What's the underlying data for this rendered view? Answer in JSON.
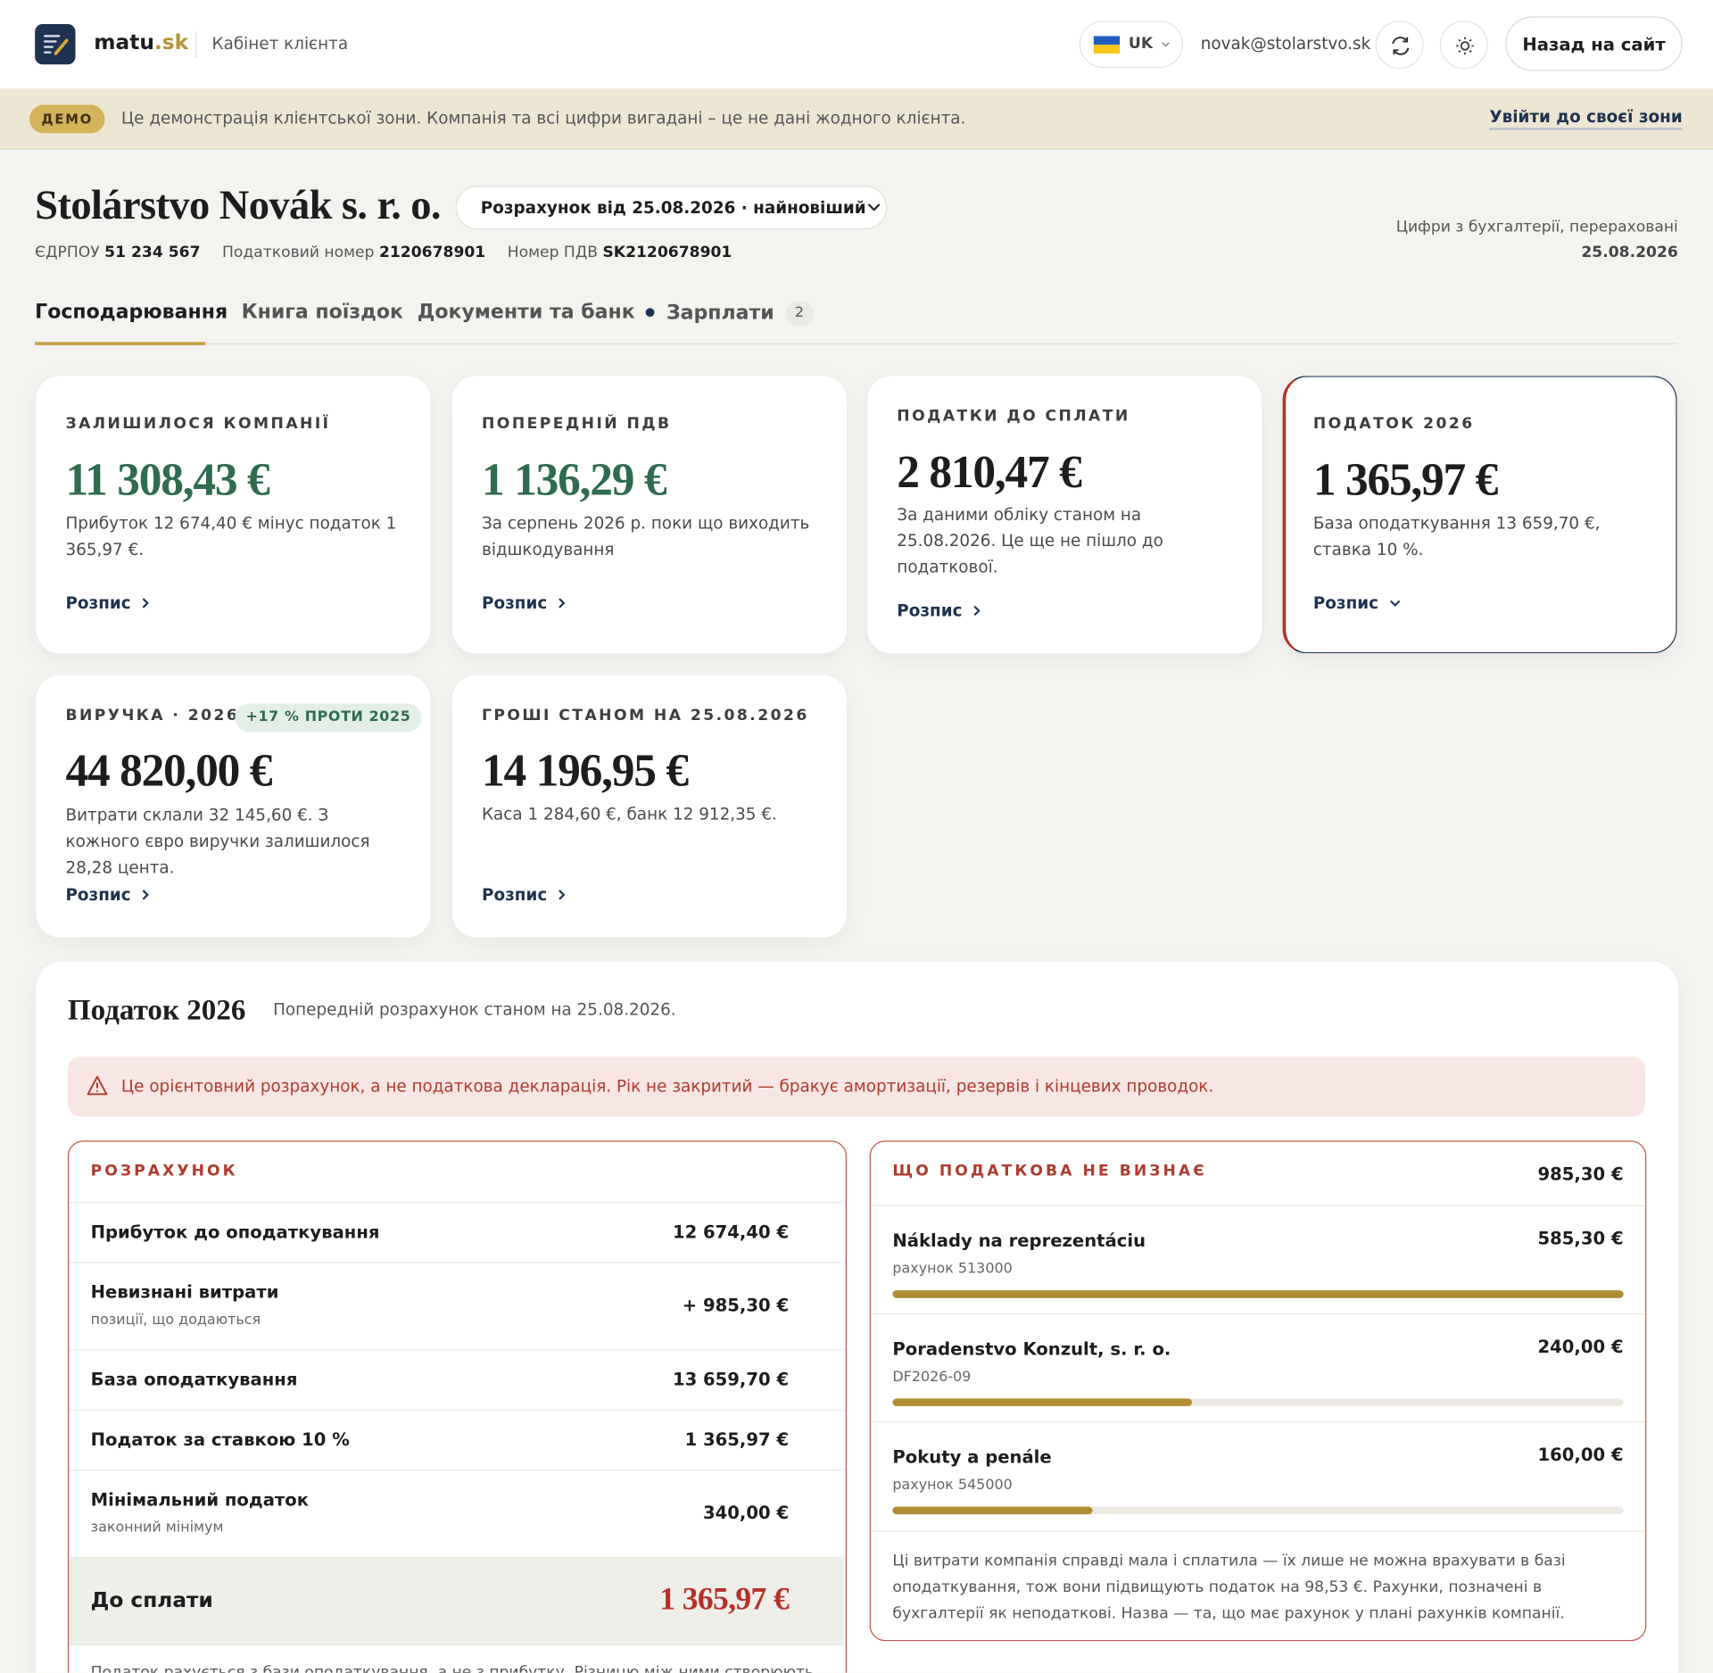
{
  "header": {
    "logo_text": "matu",
    "logo_domain": ".sk",
    "subtitle": "Кабінет клієнта",
    "language": "UK",
    "email": "novak@stolarstvo.sk",
    "back_button": "Назад на сайт"
  },
  "demo_banner": {
    "badge": "ДЕМО",
    "text": "Це демонстрація клієнтської зони. Компанія та всі цифри вигадані – це не дані жодного клієнта.",
    "link": "Увійти до своєї зони"
  },
  "company": {
    "name": "Stolárstvo Novák s. r. o.",
    "report_select": "Розрахунок від 25.08.2026 · найновіший",
    "ids": [
      {
        "label": "ЄДРПОУ",
        "value": "51 234 567"
      },
      {
        "label": "Податковий номер",
        "value": "2120678901"
      },
      {
        "label": "Номер ПДВ",
        "value": "SK2120678901"
      }
    ],
    "sync_note": "Цифри з бухгалтерії, перераховані",
    "sync_date": "25.08.2026"
  },
  "tabs": [
    {
      "label": "Господарювання"
    },
    {
      "label": "Книга поїздок"
    },
    {
      "label": "Документи та банк"
    },
    {
      "label": "Зарплати",
      "badge": "2"
    }
  ],
  "cards": [
    {
      "title": "Залишилося компанії",
      "amount": "11 308,43 €",
      "note": "Прибуток 12 674,40 € мінус податок 1 365,97 €.",
      "link": "Розпис"
    },
    {
      "title": "Попередній ПДВ",
      "amount": "1 136,29 €",
      "note": "За серпень 2026 р. поки що виходить відшкодування",
      "link": "Розпис"
    },
    {
      "title": "Податки до сплати",
      "amount": "2 810,47 €",
      "note": "За даними обліку станом на 25.08.2026. Це ще не пішло до податкової.",
      "link": "Розпис"
    },
    {
      "title": "Податок 2026",
      "amount": "1 365,97 €",
      "note": "База оподаткування 13 659,70 €, ставка 10 %.",
      "link": "Розпис"
    },
    {
      "title": "Виручка · 2026",
      "badge": "+17 % проти 2025",
      "amount": "44 820,00 €",
      "note": "Витрати склали 32 145,60 €. З кожного євро виручки залишилося 28,28 цента.",
      "link": "Розпис"
    },
    {
      "title": "Гроші станом на 25.08.2026",
      "amount": "14 196,95 €",
      "note": "Каса 1 284,60 €, банк 12 912,35 €.",
      "link": "Розпис"
    }
  ],
  "tax_section": {
    "title": "Податок 2026",
    "subtitle": "Попередній розрахунок станом на 25.08.2026.",
    "warning": "Це орієнтовний розрахунок, а не податкова декларація. Рік не закритий — бракує амортизації, резервів і кінцевих проводок.",
    "calculation": {
      "title": "Розрахунок",
      "rows": [
        {
          "label": "Прибуток до оподаткування",
          "value": "12 674,40 €"
        },
        {
          "label": "Невизнані витрати",
          "sub": "позиції, що додаються",
          "value": "+ 985,30 €"
        },
        {
          "label": "База оподаткування",
          "value": "13 659,70 €"
        },
        {
          "label": "Податок за ставкою 10 %",
          "value": "1 365,97 €"
        },
        {
          "label": "Мінімальний податок",
          "sub": "законний мінімум",
          "value": "340,00 €"
        }
      ],
      "total": {
        "label": "До сплати",
        "value": "1 365,97 €"
      },
      "footnote": "Податок рахується з бази оподаткування, а не з прибутку. Різницю між ними створюють"
    },
    "disallowed": {
      "title": "Що податкова не визнає",
      "total": "985,30 €",
      "items": [
        {
          "name": "Náklady na reprezentáciu",
          "account": "рахунок 513000",
          "amount": "585,30 €"
        },
        {
          "name": "Poradenstvo Konzult, s. r. o.",
          "account": "DF2026-09",
          "amount": "240,00 €"
        },
        {
          "name": "Pokuty a penále",
          "account": "рахунок 545000",
          "amount": "160,00 €"
        }
      ],
      "note": "Ці витрати компанія справді мала і сплатила — їх лише не можна врахувати в базі оподаткування, тож вони підвищують податок на 98,53 €. Рахунки, позначені в бухгалтерії як неподаткові. Назва — та, що має рахунок у плані рахунків компанії."
    }
  }
}
